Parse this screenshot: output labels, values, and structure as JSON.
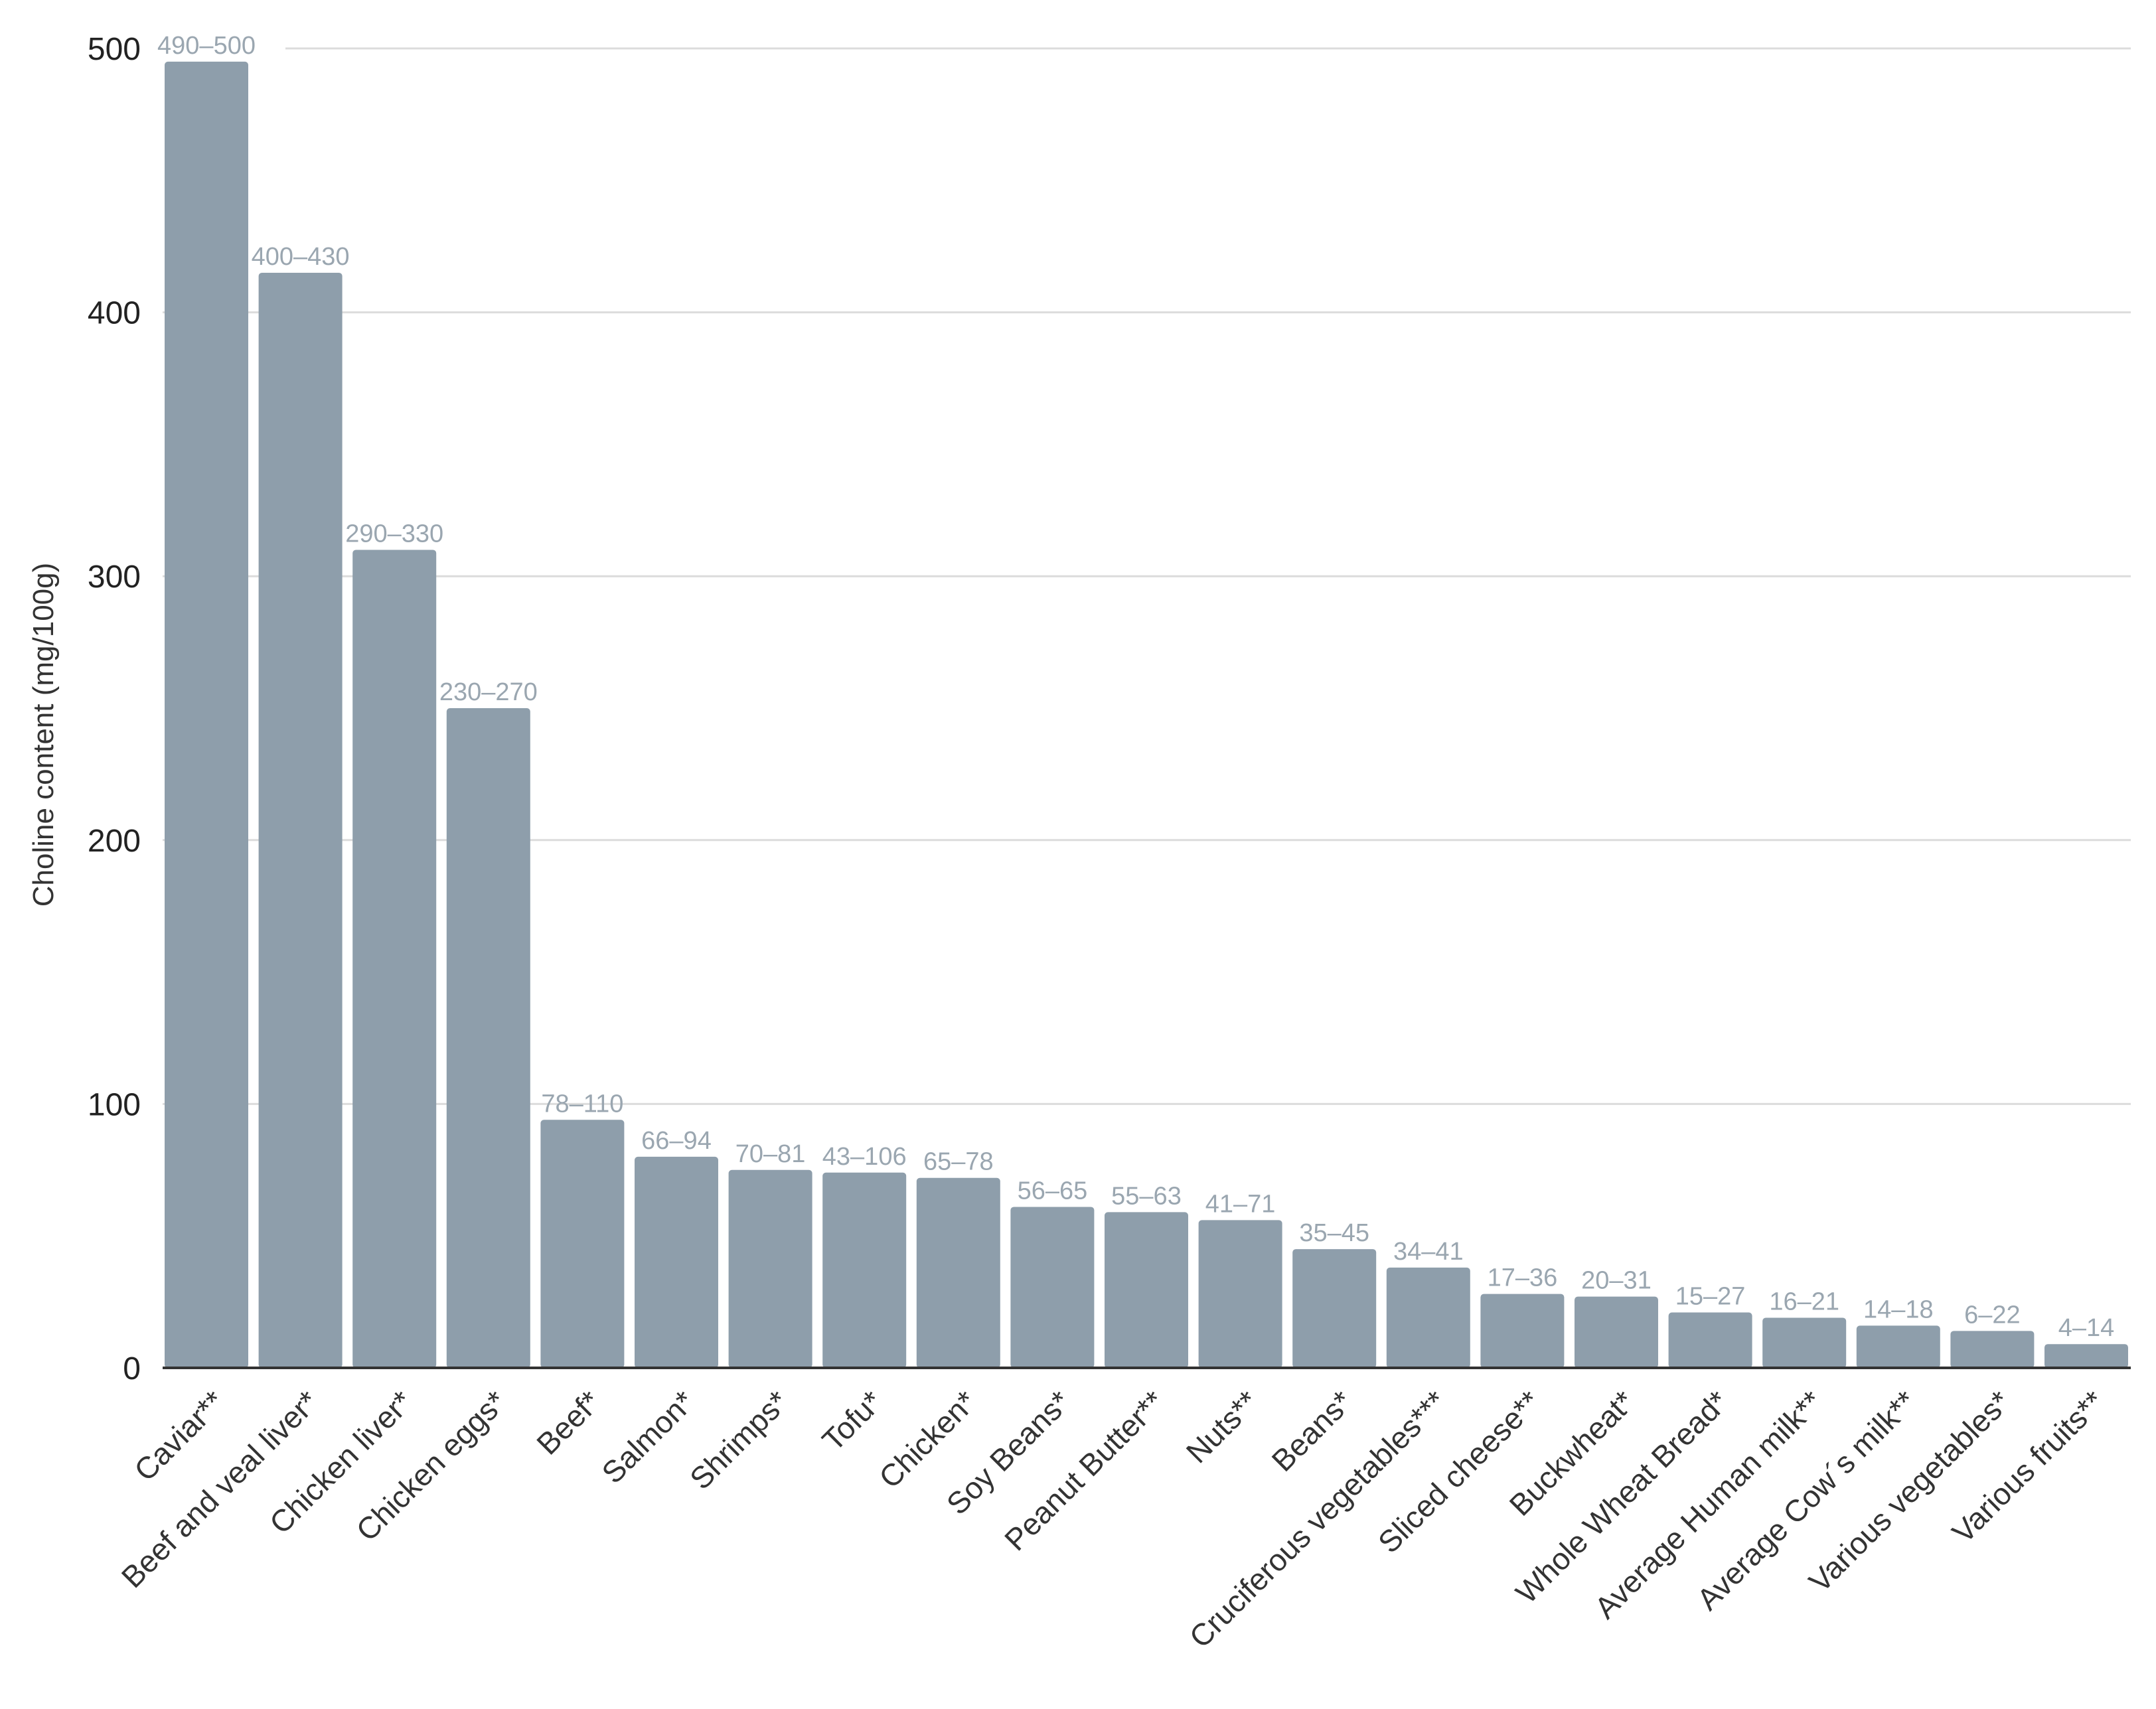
{
  "chart_data": {
    "type": "bar",
    "ylabel": "Choline content (mg/100g)",
    "xlabel": "",
    "ylim": [
      0,
      500
    ],
    "yticks": [
      0,
      100,
      200,
      300,
      400,
      500
    ],
    "grid": true,
    "bar_color": "#8e9eab",
    "label_color": "#9aa6b0",
    "categories": [
      "Caviar**",
      "Beef and veal liver*",
      "Chicken liver*",
      "Chicken eggs*",
      "Beef*",
      "Salmon*",
      "Shrimps*",
      "Tofu*",
      "Chicken*",
      "Soy Beans*",
      "Peanut Butter**",
      "Nuts**",
      "Beans*",
      "Cruciferous vegetables***",
      "Sliced cheese**",
      "Buckwheat*",
      "Whole Wheat Bread*",
      "Average Human milk**",
      "Average Cow´s milk**",
      "Various vegetables*",
      "Various fruits**"
    ],
    "values": [
      495,
      415,
      310,
      250,
      94,
      80,
      75,
      74,
      72,
      61,
      59,
      56,
      45,
      38,
      28,
      27,
      21,
      19,
      16,
      14,
      9
    ],
    "data_labels": [
      "490–500",
      "400–430",
      "290–330",
      "230–270",
      "78–110",
      "66–94",
      "70–81",
      "43–106",
      "65–78",
      "56–65",
      "55–63",
      "41–71",
      "35–45",
      "34–41",
      "17–36",
      "20–31",
      "15–27",
      "16–21",
      "14–18",
      "6–22",
      "4–14"
    ]
  }
}
